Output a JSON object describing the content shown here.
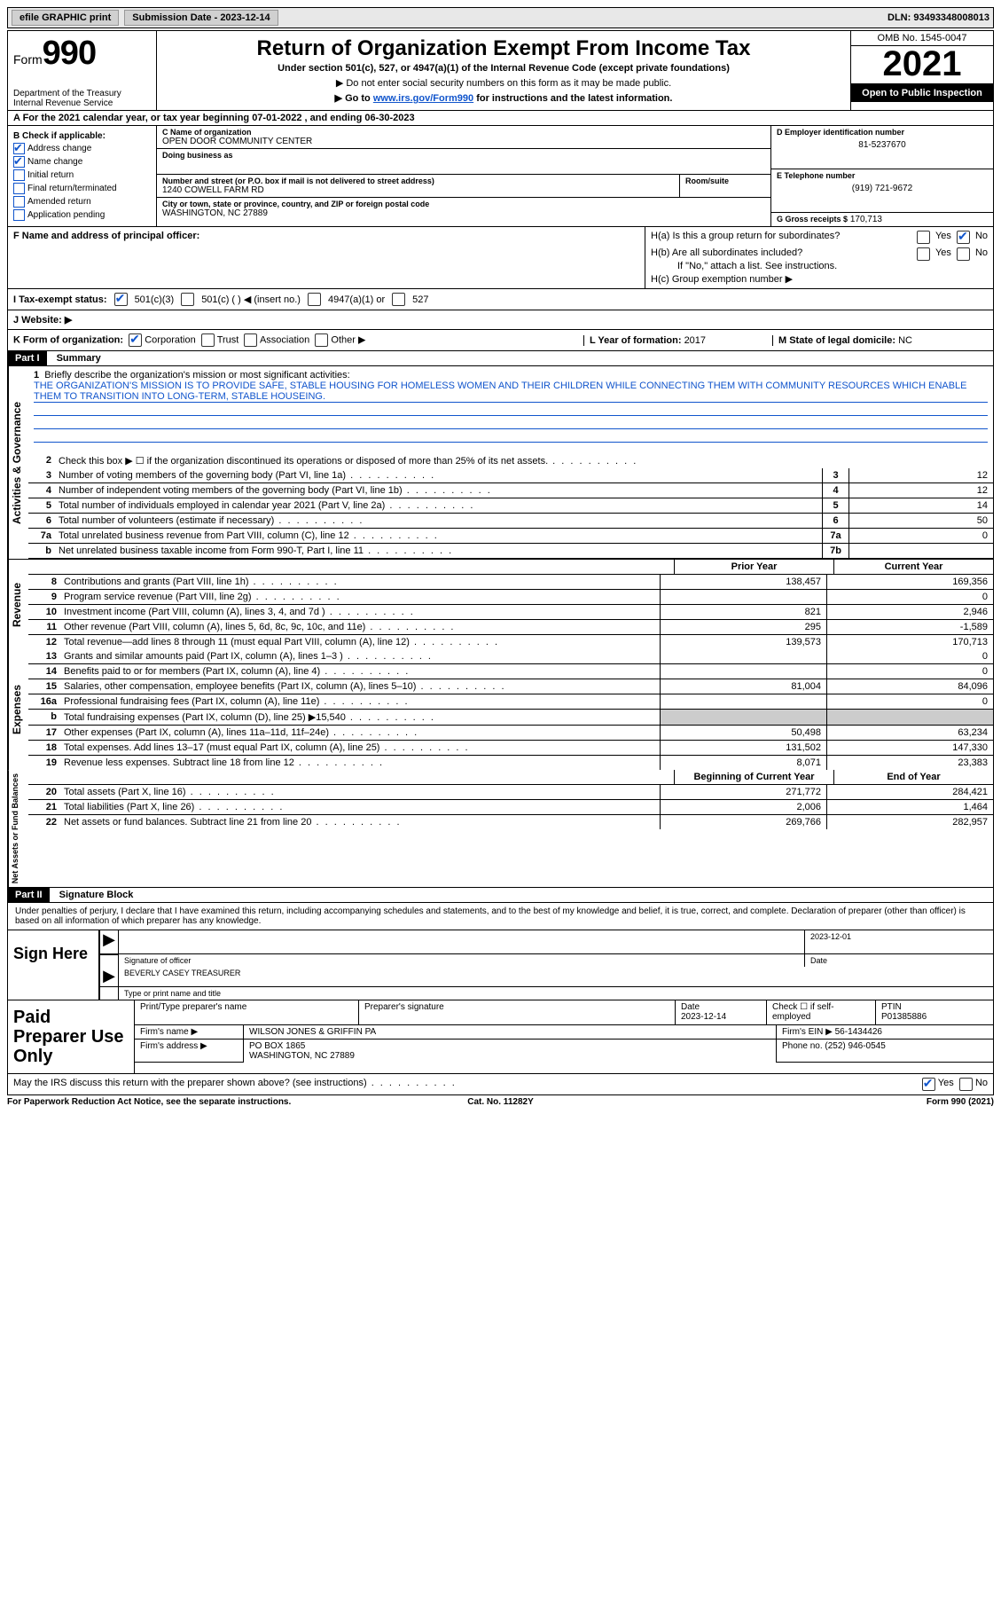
{
  "topbar": {
    "efile": "efile GRAPHIC print",
    "submission": "Submission Date - 2023-12-14",
    "dln": "DLN: 93493348008013"
  },
  "header": {
    "form_word": "Form",
    "form_num": "990",
    "title": "Return of Organization Exempt From Income Tax",
    "sub1": "Under section 501(c), 527, or 4947(a)(1) of the Internal Revenue Code (except private foundations)",
    "sub2": "▶ Do not enter social security numbers on this form as it may be made public.",
    "sub3_pre": "▶ Go to ",
    "sub3_link": "www.irs.gov/Form990",
    "sub3_post": " for instructions and the latest information.",
    "dept": "Department of the Treasury Internal Revenue Service",
    "omb": "OMB No. 1545-0047",
    "year": "2021",
    "open": "Open to Public Inspection"
  },
  "rowA": "A For the 2021 calendar year, or tax year beginning 07-01-2022   , and ending 06-30-2023",
  "colB": {
    "heading": "B Check if applicable:",
    "items": [
      {
        "label": "Address change",
        "checked": true
      },
      {
        "label": "Name change",
        "checked": true
      },
      {
        "label": "Initial return",
        "checked": false
      },
      {
        "label": "Final return/terminated",
        "checked": false
      },
      {
        "label": "Amended return",
        "checked": false
      },
      {
        "label": "Application pending",
        "checked": false
      }
    ]
  },
  "colC": {
    "name_label": "C Name of organization",
    "name": "OPEN DOOR COMMUNITY CENTER",
    "dba_label": "Doing business as",
    "addr_label": "Number and street (or P.O. box if mail is not delivered to street address)",
    "addr": "1240 COWELL FARM RD",
    "room_label": "Room/suite",
    "city_label": "City or town, state or province, country, and ZIP or foreign postal code",
    "city": "WASHINGTON, NC  27889"
  },
  "colD": {
    "ein_label": "D Employer identification number",
    "ein": "81-5237670",
    "phone_label": "E Telephone number",
    "phone": "(919) 721-9672",
    "gross_label": "G Gross receipts $",
    "gross": "170,713"
  },
  "rowF": {
    "label": "F Name and address of principal officer:",
    "ha": "H(a)  Is this a group return for subordinates?",
    "hb": "H(b)  Are all subordinates included?",
    "hb_note": "If \"No,\" attach a list. See instructions.",
    "hc": "H(c)  Group exemption number ▶"
  },
  "status": {
    "label": "I   Tax-exempt status:",
    "opt1": "501(c)(3)",
    "opt2": "501(c) (  ) ◀ (insert no.)",
    "opt3": "4947(a)(1) or",
    "opt4": "527"
  },
  "website_label": "J   Website: ▶",
  "rowK": {
    "label": "K Form of organization:",
    "corp": "Corporation",
    "trust": "Trust",
    "assoc": "Association",
    "other": "Other ▶",
    "year_label": "L Year of formation: ",
    "year": "2017",
    "state_label": "M State of legal domicile: ",
    "state": "NC"
  },
  "part1": {
    "header": "Part I",
    "title": "Summary"
  },
  "mission": {
    "num": "1",
    "intro": "Briefly describe the organization's mission or most significant activities:",
    "text": "THE ORGANIZATION'S MISSION IS TO PROVIDE SAFE, STABLE HOUSING FOR HOMELESS WOMEN AND THEIR CHILDREN WHILE CONNECTING THEM WITH COMMUNITY RESOURCES WHICH ENABLE THEM TO TRANSITION INTO LONG-TERM, STABLE HOUSEING."
  },
  "gov_rows": [
    {
      "num": "2",
      "desc": "Check this box ▶ ☐ if the organization discontinued its operations or disposed of more than 25% of its net assets.",
      "box": "",
      "val": ""
    },
    {
      "num": "3",
      "desc": "Number of voting members of the governing body (Part VI, line 1a)",
      "box": "3",
      "val": "12"
    },
    {
      "num": "4",
      "desc": "Number of independent voting members of the governing body (Part VI, line 1b)",
      "box": "4",
      "val": "12"
    },
    {
      "num": "5",
      "desc": "Total number of individuals employed in calendar year 2021 (Part V, line 2a)",
      "box": "5",
      "val": "14"
    },
    {
      "num": "6",
      "desc": "Total number of volunteers (estimate if necessary)",
      "box": "6",
      "val": "50"
    },
    {
      "num": "7a",
      "desc": "Total unrelated business revenue from Part VIII, column (C), line 12",
      "box": "7a",
      "val": "0"
    },
    {
      "num": "b",
      "desc": "Net unrelated business taxable income from Form 990-T, Part I, line 11",
      "box": "7b",
      "val": ""
    }
  ],
  "col_headers": {
    "prior": "Prior Year",
    "current": "Current Year",
    "beg": "Beginning of Current Year",
    "end": "End of Year"
  },
  "revenue_rows": [
    {
      "num": "8",
      "desc": "Contributions and grants (Part VIII, line 1h)",
      "prior": "138,457",
      "curr": "169,356"
    },
    {
      "num": "9",
      "desc": "Program service revenue (Part VIII, line 2g)",
      "prior": "",
      "curr": "0"
    },
    {
      "num": "10",
      "desc": "Investment income (Part VIII, column (A), lines 3, 4, and 7d )",
      "prior": "821",
      "curr": "2,946"
    },
    {
      "num": "11",
      "desc": "Other revenue (Part VIII, column (A), lines 5, 6d, 8c, 9c, 10c, and 11e)",
      "prior": "295",
      "curr": "-1,589"
    },
    {
      "num": "12",
      "desc": "Total revenue—add lines 8 through 11 (must equal Part VIII, column (A), line 12)",
      "prior": "139,573",
      "curr": "170,713"
    }
  ],
  "expense_rows": [
    {
      "num": "13",
      "desc": "Grants and similar amounts paid (Part IX, column (A), lines 1–3 )",
      "prior": "",
      "curr": "0"
    },
    {
      "num": "14",
      "desc": "Benefits paid to or for members (Part IX, column (A), line 4)",
      "prior": "",
      "curr": "0"
    },
    {
      "num": "15",
      "desc": "Salaries, other compensation, employee benefits (Part IX, column (A), lines 5–10)",
      "prior": "81,004",
      "curr": "84,096"
    },
    {
      "num": "16a",
      "desc": "Professional fundraising fees (Part IX, column (A), line 11e)",
      "prior": "",
      "curr": "0"
    },
    {
      "num": "b",
      "desc": "Total fundraising expenses (Part IX, column (D), line 25) ▶15,540",
      "prior": "shade",
      "curr": "shade"
    },
    {
      "num": "17",
      "desc": "Other expenses (Part IX, column (A), lines 11a–11d, 11f–24e)",
      "prior": "50,498",
      "curr": "63,234"
    },
    {
      "num": "18",
      "desc": "Total expenses. Add lines 13–17 (must equal Part IX, column (A), line 25)",
      "prior": "131,502",
      "curr": "147,330"
    },
    {
      "num": "19",
      "desc": "Revenue less expenses. Subtract line 18 from line 12",
      "prior": "8,071",
      "curr": "23,383"
    }
  ],
  "asset_rows": [
    {
      "num": "20",
      "desc": "Total assets (Part X, line 16)",
      "prior": "271,772",
      "curr": "284,421"
    },
    {
      "num": "21",
      "desc": "Total liabilities (Part X, line 26)",
      "prior": "2,006",
      "curr": "1,464"
    },
    {
      "num": "22",
      "desc": "Net assets or fund balances. Subtract line 21 from line 20",
      "prior": "269,766",
      "curr": "282,957"
    }
  ],
  "vlabels": {
    "gov": "Activities & Governance",
    "rev": "Revenue",
    "exp": "Expenses",
    "net": "Net Assets or Fund Balances"
  },
  "part2": {
    "header": "Part II",
    "title": "Signature Block"
  },
  "sig_text": "Under penalties of perjury, I declare that I have examined this return, including accompanying schedules and statements, and to the best of my knowledge and belief, it is true, correct, and complete. Declaration of preparer (other than officer) is based on all information of which preparer has any knowledge.",
  "sign": {
    "here": "Sign Here",
    "date": "2023-12-01",
    "sig_label": "Signature of officer",
    "date_label": "Date",
    "name": "BEVERLY CASEY TREASURER",
    "name_label": "Type or print name and title"
  },
  "paid": {
    "title": "Paid Preparer Use Only",
    "h1": "Print/Type preparer's name",
    "h2": "Preparer's signature",
    "h3_label": "Date",
    "h3": "2023-12-14",
    "h4": "Check ☐ if self-employed",
    "h5_label": "PTIN",
    "h5": "P01385886",
    "firm_label": "Firm's name    ▶",
    "firm": "WILSON JONES & GRIFFIN PA",
    "ein_label": "Firm's EIN ▶",
    "ein": "56-1434426",
    "addr_label": "Firm's address ▶",
    "addr1": "PO BOX 1865",
    "addr2": "WASHINGTON, NC  27889",
    "phone_label": "Phone no.",
    "phone": "(252) 946-0545"
  },
  "footer_q": "May the IRS discuss this return with the preparer shown above? (see instructions)",
  "footer_yes": "Yes",
  "footer_no": "No",
  "bottom": {
    "left": "For Paperwork Reduction Act Notice, see the separate instructions.",
    "mid": "Cat. No. 11282Y",
    "right": "Form 990 (2021)"
  }
}
